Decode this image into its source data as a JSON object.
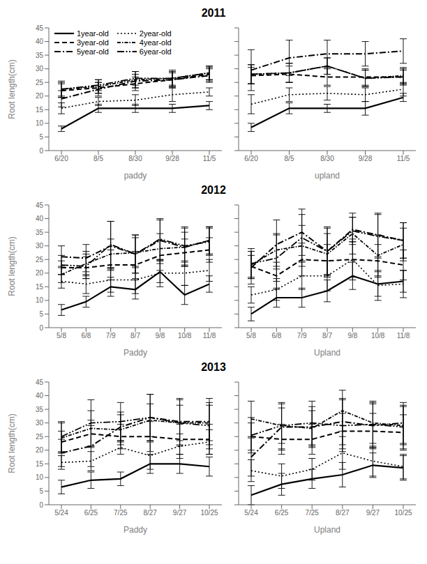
{
  "chart_data": [
    {
      "type": "line",
      "title": "2011",
      "xlabel": "paddy",
      "ylabel": "Root length(cm)",
      "categories": [
        "6/20",
        "8/5",
        "8/30",
        "9/28",
        "11/5"
      ],
      "ylim": [
        0,
        45
      ],
      "yticks": [
        0,
        5,
        10,
        15,
        20,
        25,
        30,
        35,
        40,
        45
      ],
      "legend": "upper left",
      "series": [
        {
          "name": "1year-old",
          "color": "#000000",
          "line_style": "solid",
          "values": [
            8.0,
            15.5,
            15.5,
            15.5,
            16.5
          ],
          "errors": [
            1.0,
            1.5,
            1.5,
            1.5,
            1.5
          ]
        },
        {
          "name": "2year-old",
          "color": "#000000",
          "line_style": "dotted",
          "values": [
            15.5,
            18.0,
            18.5,
            20.5,
            21.5
          ],
          "errors": [
            2.0,
            1.5,
            2.0,
            2.5,
            1.5
          ]
        },
        {
          "name": "3year-old",
          "color": "#000000",
          "line_style": "dashed",
          "values": [
            22.0,
            23.0,
            24.5,
            26.0,
            28.0
          ],
          "errors": [
            2.5,
            2.0,
            2.5,
            3.0,
            2.5
          ]
        },
        {
          "name": "4year-old",
          "color": "#000000",
          "line_style": "densedashdot",
          "values": [
            22.5,
            23.5,
            26.0,
            26.5,
            28.5
          ],
          "errors": [
            3.0,
            2.5,
            3.0,
            3.0,
            2.5
          ]
        },
        {
          "name": "5year-old",
          "color": "#000000",
          "line_style": "dashdot",
          "values": [
            19.0,
            22.5,
            25.5,
            26.0,
            27.5
          ],
          "errors": [
            3.0,
            2.5,
            2.5,
            2.5,
            2.5
          ]
        },
        {
          "name": "6year-old",
          "color": "#000000",
          "line_style": "dashdotdot",
          "values": [
            22.5,
            24.0,
            26.5,
            26.5,
            28.5
          ],
          "errors": [
            2.5,
            2.0,
            2.5,
            2.5,
            2.5
          ]
        }
      ]
    },
    {
      "type": "line",
      "xlabel": "upland",
      "categories": [
        "6/20",
        "8/5",
        "8/30",
        "9/28",
        "11/5"
      ],
      "ylim": [
        0,
        45
      ],
      "yticks": [
        0,
        5,
        10,
        15,
        20,
        25,
        30,
        35,
        40,
        45
      ],
      "tick_labels": "x",
      "series": [
        {
          "color": "#000000",
          "line_style": "solid",
          "values": [
            8.5,
            15.5,
            15.5,
            15.5,
            19.5
          ],
          "errors": [
            1.5,
            2.0,
            1.5,
            2.5,
            1.5
          ]
        },
        {
          "color": "#000000",
          "line_style": "dotted",
          "values": [
            17.0,
            20.5,
            21.0,
            20.5,
            22.5
          ],
          "errors": [
            3.5,
            2.5,
            2.5,
            2.5,
            2.5
          ]
        },
        {
          "color": "#000000",
          "line_style": "dashed",
          "values": [
            27.5,
            28.0,
            27.0,
            27.0,
            27.0
          ],
          "errors": [
            3.0,
            3.0,
            3.0,
            3.0,
            3.0
          ]
        },
        {
          "color": "#000000",
          "line_style": "densedashdot",
          "values": [
            28.0,
            28.5,
            31.0,
            26.5,
            27.5
          ],
          "errors": [
            3.5,
            3.5,
            3.0,
            3.0,
            3.0
          ]
        },
        {
          "color": "#000000",
          "line_style": "dashdot",
          "values": [
            29.5,
            34.0,
            35.5,
            35.5,
            36.5
          ],
          "errors": [
            7.5,
            6.5,
            5.0,
            4.5,
            4.5
          ]
        },
        {
          "color": "#000000",
          "line_style": "dashdotdot",
          "values": [
            28.0,
            28.5,
            31.0,
            26.5,
            27.0
          ],
          "errors": [
            3.5,
            3.5,
            3.0,
            3.0,
            2.5
          ]
        }
      ]
    },
    {
      "type": "line",
      "title": "2012",
      "xlabel": "Paddy",
      "ylabel": "Root length(cm)",
      "categories": [
        "5/8",
        "6/8",
        "7/9",
        "8/7",
        "9/8",
        "10/8",
        "11/8"
      ],
      "ylim": [
        0,
        45
      ],
      "yticks": [
        0,
        5,
        10,
        15,
        20,
        25,
        30,
        35,
        40,
        45
      ],
      "series": [
        {
          "color": "#000000",
          "line_style": "solid",
          "values": [
            6.5,
            9.5,
            15.0,
            14.0,
            20.5,
            12.0,
            16.0
          ],
          "errors": [
            2.0,
            2.0,
            3.5,
            3.5,
            4.0,
            3.5,
            3.0
          ]
        },
        {
          "color": "#000000",
          "line_style": "dotted",
          "values": [
            17.0,
            16.0,
            17.5,
            17.5,
            20.0,
            20.0,
            21.0
          ],
          "errors": [
            2.5,
            3.5,
            4.5,
            5.0,
            5.0,
            4.5,
            4.0
          ]
        },
        {
          "color": "#000000",
          "line_style": "dashed",
          "values": [
            22.0,
            22.0,
            23.0,
            23.0,
            26.5,
            27.5,
            28.5
          ],
          "errors": [
            2.5,
            4.0,
            5.5,
            5.0,
            5.5,
            5.0,
            4.5
          ]
        },
        {
          "color": "#000000",
          "line_style": "densedashdot",
          "values": [
            19.5,
            23.5,
            27.0,
            27.5,
            29.0,
            29.5,
            32.0
          ],
          "errors": [
            3.0,
            4.5,
            5.5,
            5.5,
            5.5,
            5.5,
            5.0
          ]
        },
        {
          "color": "#000000",
          "line_style": "dashdot",
          "values": [
            26.0,
            25.5,
            30.0,
            27.0,
            32.0,
            29.5,
            32.0
          ],
          "errors": [
            4.0,
            5.0,
            9.0,
            7.0,
            7.5,
            7.0,
            5.0
          ]
        },
        {
          "color": "#000000",
          "line_style": "dashdotdot",
          "values": [
            23.0,
            22.5,
            30.5,
            27.0,
            32.5,
            30.0,
            31.5
          ],
          "errors": [
            3.5,
            4.5,
            8.5,
            7.0,
            7.5,
            7.0,
            5.0
          ]
        }
      ]
    },
    {
      "type": "line",
      "xlabel": "Upland",
      "categories": [
        "5/8",
        "6/8",
        "7/9",
        "8/7",
        "9/8",
        "10/8",
        "11/8"
      ],
      "ylim": [
        0,
        45
      ],
      "yticks": [
        0,
        5,
        10,
        15,
        20,
        25,
        30,
        35,
        40,
        45
      ],
      "tick_labels": "x",
      "series": [
        {
          "color": "#000000",
          "line_style": "solid",
          "values": [
            5.0,
            11.0,
            11.0,
            13.5,
            19.0,
            16.0,
            17.0
          ],
          "errors": [
            2.5,
            3.5,
            3.5,
            4.0,
            5.0,
            4.5,
            4.0
          ]
        },
        {
          "color": "#000000",
          "line_style": "dotted",
          "values": [
            12.0,
            14.0,
            19.0,
            19.0,
            25.0,
            15.5,
            16.0
          ],
          "errors": [
            3.0,
            4.0,
            5.0,
            5.5,
            6.5,
            5.5,
            5.0
          ]
        },
        {
          "color": "#000000",
          "line_style": "dashed",
          "values": [
            22.5,
            19.0,
            25.0,
            24.5,
            25.0,
            24.5,
            23.0
          ],
          "errors": [
            4.0,
            5.0,
            6.0,
            6.0,
            7.5,
            6.0,
            5.5
          ]
        },
        {
          "color": "#000000",
          "line_style": "densedashdot",
          "values": [
            23.0,
            28.5,
            30.0,
            27.0,
            34.5,
            26.5,
            30.5
          ],
          "errors": [
            5.0,
            6.0,
            7.5,
            7.5,
            7.5,
            7.5,
            6.0
          ]
        },
        {
          "color": "#000000",
          "line_style": "dashdot",
          "values": [
            22.0,
            30.5,
            35.0,
            28.0,
            36.0,
            34.0,
            32.0
          ],
          "errors": [
            6.0,
            9.0,
            8.5,
            9.0,
            4.5,
            8.0,
            6.5
          ]
        },
        {
          "color": "#000000",
          "line_style": "dashdotdot",
          "values": [
            23.5,
            25.5,
            33.0,
            28.0,
            35.5,
            33.5,
            32.0
          ],
          "errors": [
            5.5,
            8.5,
            8.5,
            8.5,
            5.0,
            8.0,
            6.5
          ]
        }
      ]
    },
    {
      "type": "line",
      "title": "2013",
      "xlabel": "Paddy",
      "ylabel": "Root length(cm)",
      "categories": [
        "5/24",
        "6/25",
        "7/25",
        "8/27",
        "9/27",
        "10/25"
      ],
      "ylim": [
        0,
        45
      ],
      "yticks": [
        0,
        5,
        10,
        15,
        20,
        25,
        30,
        35,
        40,
        45
      ],
      "series": [
        {
          "color": "#000000",
          "line_style": "solid",
          "values": [
            6.5,
            9.0,
            9.5,
            15.0,
            15.0,
            14.0
          ],
          "errors": [
            2.5,
            3.0,
            2.5,
            3.5,
            3.5,
            3.5
          ]
        },
        {
          "color": "#000000",
          "line_style": "dotted",
          "values": [
            15.5,
            16.0,
            21.0,
            18.0,
            21.5,
            23.0
          ],
          "errors": [
            2.5,
            3.5,
            2.5,
            5.0,
            4.5,
            4.5
          ]
        },
        {
          "color": "#000000",
          "line_style": "dashed",
          "values": [
            23.0,
            26.0,
            25.0,
            25.0,
            24.0,
            24.0
          ],
          "errors": [
            4.0,
            5.0,
            4.5,
            5.5,
            5.5,
            5.5
          ]
        },
        {
          "color": "#000000",
          "line_style": "densedashdot",
          "values": [
            24.5,
            28.0,
            27.5,
            31.0,
            30.0,
            30.0
          ],
          "errors": [
            5.5,
            6.5,
            5.5,
            6.0,
            6.5,
            6.5
          ]
        },
        {
          "color": "#000000",
          "line_style": "dashdot",
          "values": [
            19.0,
            21.5,
            28.5,
            32.0,
            30.5,
            30.5
          ],
          "errors": [
            5.0,
            7.5,
            5.5,
            8.5,
            8.5,
            8.5
          ]
        },
        {
          "color": "#000000",
          "line_style": "dashdotdot",
          "values": [
            25.0,
            30.0,
            30.5,
            32.0,
            30.0,
            29.0
          ],
          "errors": [
            5.5,
            8.5,
            7.0,
            8.5,
            8.5,
            8.5
          ]
        }
      ]
    },
    {
      "type": "line",
      "xlabel": "Upland",
      "categories": [
        "5/24",
        "6/25",
        "7/25",
        "8/27",
        "9/27",
        "10/25"
      ],
      "ylim": [
        0,
        45
      ],
      "yticks": [
        0,
        5,
        10,
        15,
        20,
        25,
        30,
        35,
        40,
        45
      ],
      "tick_labels": "x",
      "series": [
        {
          "color": "#000000",
          "line_style": "solid",
          "values": [
            3.5,
            7.5,
            9.5,
            11.0,
            14.5,
            13.5
          ],
          "errors": [
            3.5,
            4.0,
            3.5,
            4.5,
            4.5,
            4.5
          ]
        },
        {
          "color": "#000000",
          "line_style": "dotted",
          "values": [
            12.5,
            10.5,
            13.0,
            19.0,
            16.0,
            14.0
          ],
          "errors": [
            4.0,
            4.5,
            4.0,
            6.0,
            5.5,
            4.5
          ]
        },
        {
          "color": "#000000",
          "line_style": "dashed",
          "values": [
            25.0,
            24.0,
            24.0,
            27.0,
            27.0,
            26.5
          ],
          "errors": [
            5.0,
            5.5,
            5.5,
            6.5,
            6.5,
            6.5
          ]
        },
        {
          "color": "#000000",
          "line_style": "densedashdot",
          "values": [
            31.5,
            29.0,
            28.0,
            34.5,
            30.0,
            29.0
          ],
          "errors": [
            6.5,
            6.5,
            6.5,
            7.5,
            7.5,
            7.0
          ]
        },
        {
          "color": "#000000",
          "line_style": "dashdot",
          "values": [
            17.5,
            28.5,
            28.5,
            30.5,
            29.0,
            30.0
          ],
          "errors": [
            7.0,
            8.5,
            7.5,
            8.5,
            8.0,
            7.5
          ]
        },
        {
          "color": "#000000",
          "line_style": "dashdotdot",
          "values": [
            25.5,
            29.0,
            30.0,
            29.0,
            29.5,
            28.5
          ],
          "errors": [
            6.5,
            8.5,
            8.0,
            9.5,
            8.5,
            8.0
          ]
        }
      ]
    }
  ]
}
